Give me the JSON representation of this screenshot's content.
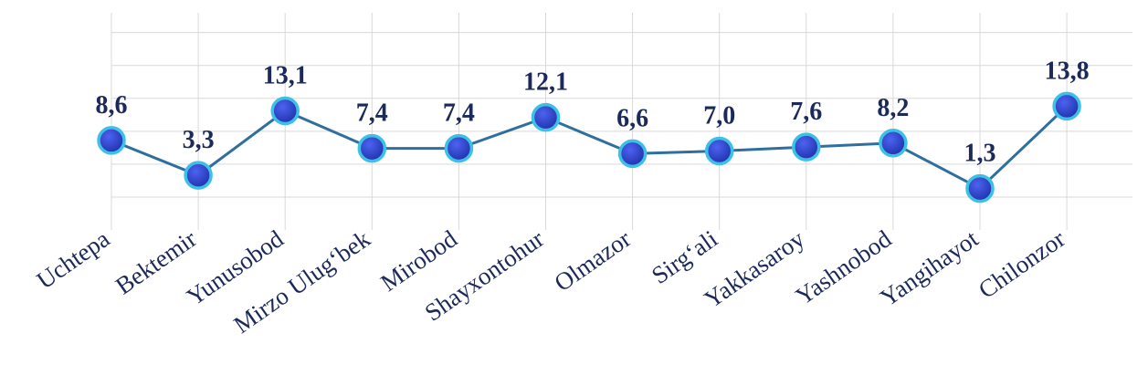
{
  "chart_data": {
    "type": "line",
    "categories": [
      "Uchtepa",
      "Bektemir",
      "Yunusobod",
      "Mirzo Ulug‘bek",
      "Mirobod",
      "Shayxontohur",
      "Olmazor",
      "Sirg‘ali",
      "Yakkasaroy",
      "Yashnobod",
      "Yangihayot",
      "Chilonzor"
    ],
    "values": [
      8.6,
      3.3,
      13.1,
      7.4,
      7.4,
      12.1,
      6.6,
      7.0,
      7.6,
      8.2,
      1.3,
      13.8
    ],
    "value_labels": [
      "8,6",
      "3,3",
      "13,1",
      "7,4",
      "7,4",
      "12,1",
      "6,6",
      "7,0",
      "7,6",
      "8,2",
      "1,3",
      "13,8"
    ],
    "color": "#2f6f9e",
    "ylim": [
      -5,
      28
    ],
    "yticks": [
      0,
      5,
      10,
      15,
      20,
      25
    ],
    "grid": true
  }
}
